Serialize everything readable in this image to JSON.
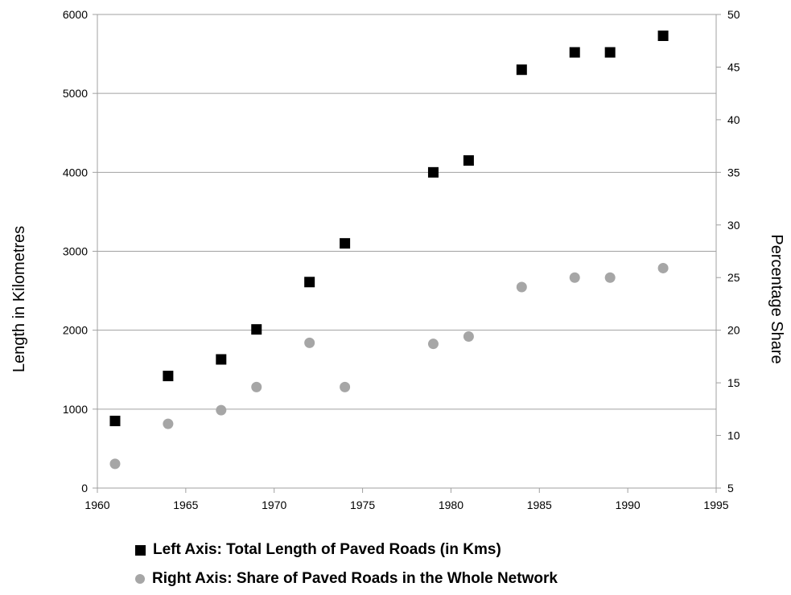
{
  "chart_data": {
    "type": "scatter",
    "title": "",
    "xlabel": "",
    "ylabel": "Length in Kilometres",
    "y2label": "Percentage Share",
    "xlim": [
      1960,
      1995
    ],
    "ylim": [
      0,
      6000
    ],
    "y2lim": [
      5,
      50
    ],
    "x_ticks": [
      1960,
      1965,
      1970,
      1975,
      1980,
      1985,
      1990,
      1995
    ],
    "y_ticks": [
      0,
      1000,
      2000,
      3000,
      4000,
      5000,
      6000
    ],
    "y2_ticks": [
      5,
      10,
      15,
      20,
      25,
      30,
      35,
      40,
      45,
      50
    ],
    "grid": "horizontal",
    "legend_position": "bottom",
    "series": [
      {
        "name": "Left Axis: Total Length of Paved Roads (in Kms)",
        "axis": "left",
        "marker": "square",
        "color": "#000000",
        "x": [
          1961,
          1964,
          1967,
          1969,
          1972,
          1974,
          1979,
          1981,
          1984,
          1987,
          1989,
          1992
        ],
        "y": [
          850,
          1420,
          1630,
          2010,
          2610,
          3100,
          4000,
          4150,
          5300,
          5520,
          5520,
          5730
        ]
      },
      {
        "name": "Right Axis: Share of Paved Roads in the Whole Network",
        "axis": "right",
        "marker": "circle",
        "color": "#a6a6a6",
        "x": [
          1961,
          1964,
          1967,
          1969,
          1972,
          1974,
          1979,
          1981,
          1984,
          1987,
          1989,
          1992
        ],
        "y": [
          7.3,
          11.1,
          12.4,
          14.6,
          18.8,
          14.6,
          18.7,
          19.4,
          24.1,
          25.0,
          25.0,
          25.9
        ]
      }
    ]
  }
}
